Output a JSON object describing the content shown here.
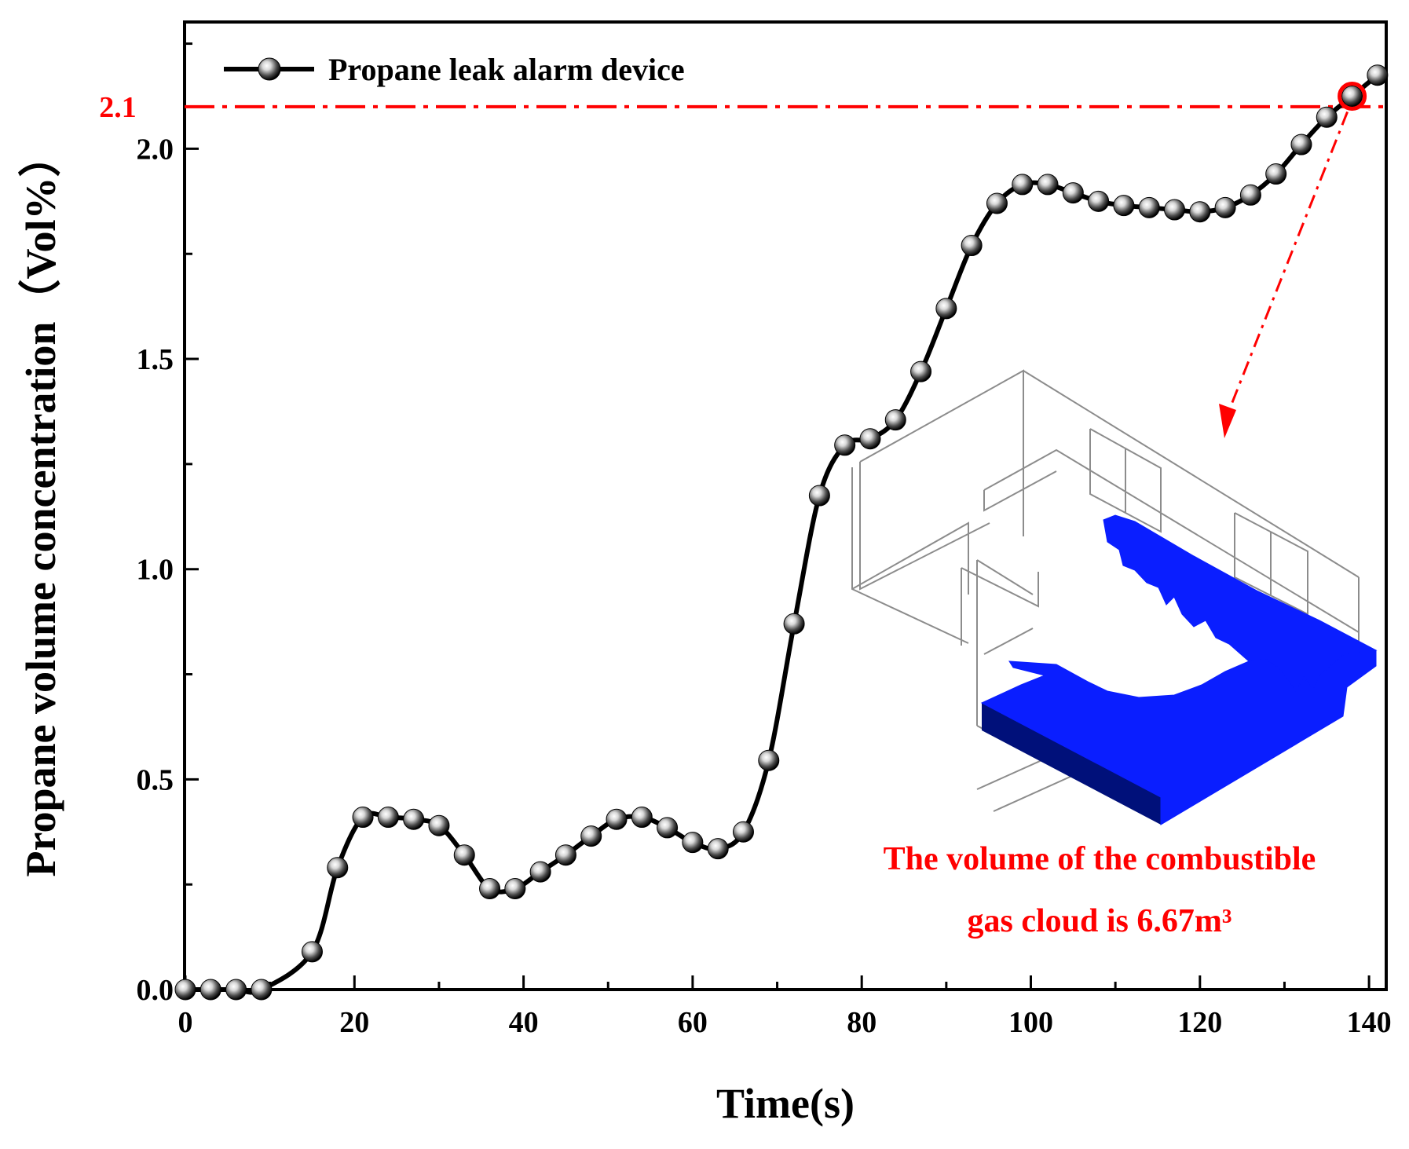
{
  "chart_data": {
    "type": "line",
    "xlabel": "Time(s)",
    "ylabel": "Propane volume concentration（Vol%）",
    "xlim": [
      0,
      142
    ],
    "ylim": [
      0,
      2.3
    ],
    "x_ticks": [
      "0",
      "20",
      "40",
      "60",
      "80",
      "100",
      "120",
      "140"
    ],
    "y_ticks": [
      "0.0",
      "0.5",
      "1.0",
      "1.5",
      "2.0"
    ],
    "grid": false,
    "legend_position": "top-left",
    "series": [
      {
        "name": "Propane leak alarm device",
        "color": "#000000",
        "marker": "sphere",
        "x": [
          0,
          3,
          6,
          9,
          15,
          18,
          21,
          24,
          27,
          30,
          33,
          36,
          39,
          42,
          45,
          48,
          51,
          54,
          57,
          60,
          63,
          66,
          69,
          72,
          75,
          78,
          81,
          84,
          87,
          90,
          93,
          96,
          99,
          102,
          105,
          108,
          111,
          114,
          117,
          120,
          123,
          126,
          129,
          132,
          135,
          138,
          141
        ],
        "y": [
          0.0,
          0.0,
          0.0,
          0.0,
          0.09,
          0.29,
          0.41,
          0.41,
          0.405,
          0.39,
          0.32,
          0.24,
          0.24,
          0.28,
          0.32,
          0.365,
          0.405,
          0.41,
          0.385,
          0.35,
          0.335,
          0.375,
          0.545,
          0.87,
          1.175,
          1.295,
          1.31,
          1.355,
          1.47,
          1.62,
          1.77,
          1.87,
          1.915,
          1.915,
          1.895,
          1.875,
          1.865,
          1.86,
          1.855,
          1.85,
          1.86,
          1.89,
          1.94,
          2.01,
          2.075,
          2.125,
          2.175
        ]
      }
    ],
    "reference_line": {
      "y": 2.1,
      "label": "2.1",
      "color": "#ff0000"
    },
    "highlight_point": {
      "x": 138,
      "y": 2.125,
      "color": "#ff0000"
    },
    "annotation": {
      "line1": "The volume of the combustible",
      "line2": "gas cloud is 6.67m³",
      "color": "#ff0000"
    },
    "inset_colors": {
      "cloud": "#0a1eff",
      "cloud_dark": "#00107a",
      "wireframe": "#8c8c8c"
    }
  }
}
